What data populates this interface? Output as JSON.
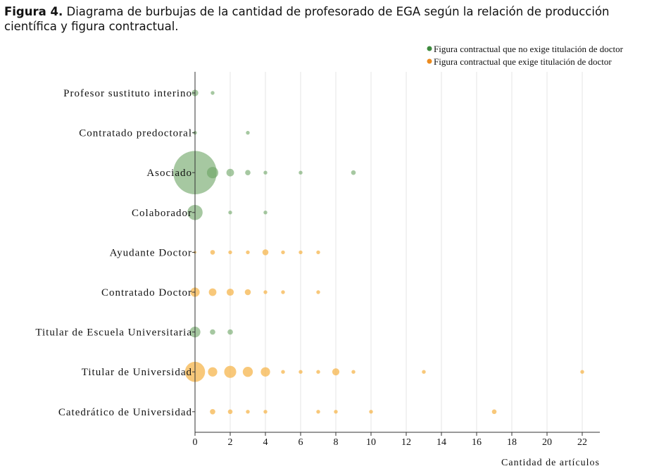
{
  "caption": {
    "figure_label": "Figura 4.",
    "text": " Diagrama de burbujas de la cantidad de profesorado de EGA según la relación de producción científica y figura contractual."
  },
  "colors": {
    "no_doctor": "#6aa463",
    "doctor": "#f6b54e",
    "no_doctor_legend": "#3d8a3d",
    "doctor_legend": "#ec8b1f",
    "grid": "#e6e6e6"
  },
  "chart_data": {
    "type": "scatter",
    "bubble": true,
    "xlabel": "Cantidad de artículos",
    "ylabel": "",
    "xlim": [
      0,
      23
    ],
    "x_ticks": [
      0,
      2,
      4,
      6,
      8,
      10,
      12,
      14,
      16,
      18,
      20,
      22
    ],
    "grid": "vertical",
    "legend_position": "top-right",
    "categories": [
      "Profesor sustituto interino",
      "Contratado predoctoral",
      "Asociado",
      "Colaborador",
      "Ayudante Doctor",
      "Contratado Doctor",
      "Titular de Escuela Universitaria",
      "Titular de Universidad",
      "Catedrático de Universidad"
    ],
    "series": [
      {
        "name": "Figura contractual que no exige titulación de doctor",
        "color_key": "no_doctor",
        "points": [
          {
            "category": "Profesor sustituto interino",
            "x": 0,
            "size": 3
          },
          {
            "category": "Profesor sustituto interino",
            "x": 1,
            "size": 1
          },
          {
            "category": "Contratado predoctoral",
            "x": 0,
            "size": 1
          },
          {
            "category": "Contratado predoctoral",
            "x": 3,
            "size": 1
          },
          {
            "category": "Asociado",
            "x": 0,
            "size": 130
          },
          {
            "category": "Asociado",
            "x": 1,
            "size": 9
          },
          {
            "category": "Asociado",
            "x": 2,
            "size": 4
          },
          {
            "category": "Asociado",
            "x": 3,
            "size": 2
          },
          {
            "category": "Asociado",
            "x": 4,
            "size": 1
          },
          {
            "category": "Asociado",
            "x": 6,
            "size": 1
          },
          {
            "category": "Asociado",
            "x": 9,
            "size": 1.5
          },
          {
            "category": "Colaborador",
            "x": 0,
            "size": 16
          },
          {
            "category": "Colaborador",
            "x": 2,
            "size": 1
          },
          {
            "category": "Colaborador",
            "x": 4,
            "size": 1
          },
          {
            "category": "Titular de Escuela Universitaria",
            "x": 0,
            "size": 8
          },
          {
            "category": "Titular de Escuela Universitaria",
            "x": 1,
            "size": 2
          },
          {
            "category": "Titular de Escuela Universitaria",
            "x": 2,
            "size": 2
          }
        ]
      },
      {
        "name": "Figura contractual que exige titulación de doctor",
        "color_key": "doctor",
        "points": [
          {
            "category": "Ayudante Doctor",
            "x": 0,
            "size": 0.5
          },
          {
            "category": "Ayudante Doctor",
            "x": 1,
            "size": 1.5
          },
          {
            "category": "Ayudante Doctor",
            "x": 2,
            "size": 1
          },
          {
            "category": "Ayudante Doctor",
            "x": 3,
            "size": 1
          },
          {
            "category": "Ayudante Doctor",
            "x": 4,
            "size": 2.5
          },
          {
            "category": "Ayudante Doctor",
            "x": 5,
            "size": 1
          },
          {
            "category": "Ayudante Doctor",
            "x": 6,
            "size": 1
          },
          {
            "category": "Ayudante Doctor",
            "x": 7,
            "size": 1
          },
          {
            "category": "Contratado Doctor",
            "x": 0,
            "size": 6
          },
          {
            "category": "Contratado Doctor",
            "x": 1,
            "size": 4
          },
          {
            "category": "Contratado Doctor",
            "x": 2,
            "size": 3.5
          },
          {
            "category": "Contratado Doctor",
            "x": 3,
            "size": 2.5
          },
          {
            "category": "Contratado Doctor",
            "x": 4,
            "size": 1
          },
          {
            "category": "Contratado Doctor",
            "x": 5,
            "size": 1
          },
          {
            "category": "Contratado Doctor",
            "x": 7,
            "size": 1
          },
          {
            "category": "Titular de Universidad",
            "x": 0,
            "size": 28
          },
          {
            "category": "Titular de Universidad",
            "x": 1,
            "size": 6
          },
          {
            "category": "Titular de Universidad",
            "x": 2,
            "size": 10
          },
          {
            "category": "Titular de Universidad",
            "x": 3,
            "size": 7
          },
          {
            "category": "Titular de Universidad",
            "x": 4,
            "size": 6
          },
          {
            "category": "Titular de Universidad",
            "x": 5,
            "size": 1
          },
          {
            "category": "Titular de Universidad",
            "x": 6,
            "size": 1
          },
          {
            "category": "Titular de Universidad",
            "x": 7,
            "size": 1
          },
          {
            "category": "Titular de Universidad",
            "x": 8,
            "size": 3.5
          },
          {
            "category": "Titular de Universidad",
            "x": 9,
            "size": 1
          },
          {
            "category": "Titular de Universidad",
            "x": 13,
            "size": 1
          },
          {
            "category": "Titular de Universidad",
            "x": 22,
            "size": 1
          },
          {
            "category": "Catedrático de Universidad",
            "x": 1,
            "size": 2
          },
          {
            "category": "Catedrático de Universidad",
            "x": 2,
            "size": 1.5
          },
          {
            "category": "Catedrático de Universidad",
            "x": 3,
            "size": 1
          },
          {
            "category": "Catedrático de Universidad",
            "x": 4,
            "size": 1
          },
          {
            "category": "Catedrático de Universidad",
            "x": 7,
            "size": 1
          },
          {
            "category": "Catedrático de Universidad",
            "x": 8,
            "size": 1
          },
          {
            "category": "Catedrático de Universidad",
            "x": 10,
            "size": 1
          },
          {
            "category": "Catedrático de Universidad",
            "x": 17,
            "size": 1.5
          }
        ]
      }
    ]
  }
}
